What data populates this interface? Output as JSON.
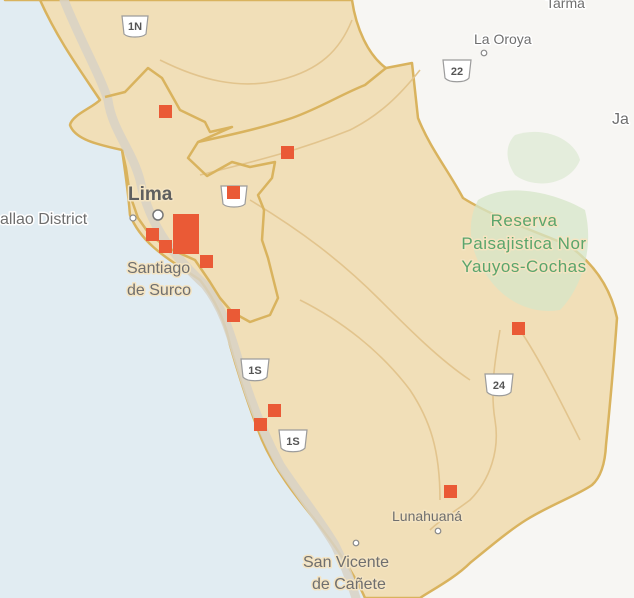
{
  "colors": {
    "sea": "#e1ecf2",
    "land": "#f7f6f3",
    "region_fill": "#f1dfb8",
    "region_border": "#d9b35e",
    "marker": "#ea5a36",
    "reserve": "#d6e6c8",
    "road": "#e2c48d"
  },
  "labels": {
    "lima": "Lima",
    "callao": "allao District",
    "santiago_line1": "Santiago",
    "santiago_line2": "de Surco",
    "la_oroya": "La Oroya",
    "tarma": "Tarma",
    "ja": "Ja",
    "reserve_line1": "Reserva",
    "reserve_line2": "Paisajistica Nor",
    "reserve_line3": "Yauyos-Cochas",
    "lunahuana": "Lunahuaná",
    "san_vicente_line1": "San Vicente",
    "san_vicente_line2": "de Cañete"
  },
  "shields": {
    "r1n": "1N",
    "r22": "22",
    "r1s_a": "1S",
    "r1s_b": "1S",
    "r24": "24"
  },
  "markers": [
    "marker-1",
    "marker-2",
    "marker-3",
    "marker-4",
    "marker-5",
    "marker-6",
    "marker-7",
    "marker-8",
    "marker-9",
    "marker-10",
    "marker-11",
    "marker-12",
    "marker-13"
  ]
}
